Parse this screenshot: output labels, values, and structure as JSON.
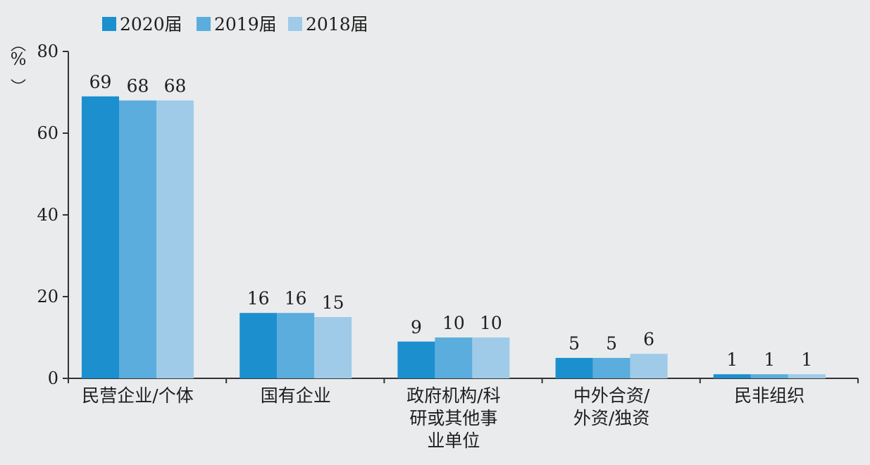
{
  "chart_data": {
    "type": "bar",
    "ylabel": "%",
    "ylim": [
      0,
      80
    ],
    "yticks": [
      "0",
      "20",
      "40",
      "60",
      "80"
    ],
    "categories": [
      [
        "民营企业/个体"
      ],
      [
        "国有企业"
      ],
      [
        "政府机构/科",
        "研或其他事",
        "业单位"
      ],
      [
        "中外合资/",
        "外资/独资"
      ],
      [
        "民非组织"
      ]
    ],
    "series": [
      {
        "name": "2020届",
        "color": "#1c8fcf",
        "values": [
          69,
          16,
          9,
          5,
          1
        ]
      },
      {
        "name": "2019届",
        "color": "#5aaddc",
        "values": [
          68,
          16,
          10,
          5,
          1
        ]
      },
      {
        "name": "2018届",
        "color": "#9fcbe9",
        "values": [
          68,
          15,
          10,
          6,
          1
        ]
      }
    ],
    "legend_position": "top-left"
  }
}
